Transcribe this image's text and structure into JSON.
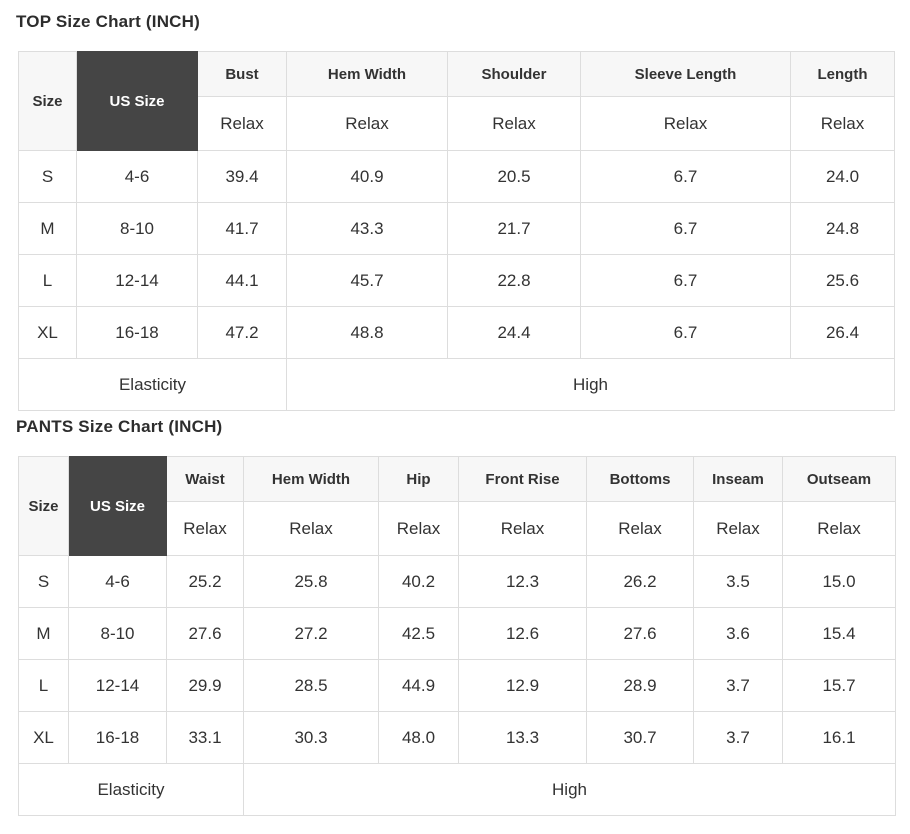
{
  "colors": {
    "accent_dark": "#454545",
    "header_bg": "#f7f7f7",
    "border": "#dddddd",
    "text": "#333333"
  },
  "charts": [
    {
      "id": "top",
      "title": "TOP Size Chart (INCH)",
      "columns": [
        "Size",
        "US Size",
        "Bust",
        "Hem Width",
        "Shoulder",
        "Sleeve Length",
        "Length"
      ],
      "fit_label": "Relax",
      "rows": [
        [
          "S",
          "4-6",
          "39.4",
          "40.9",
          "20.5",
          "6.7",
          "24.0"
        ],
        [
          "M",
          "8-10",
          "41.7",
          "43.3",
          "21.7",
          "6.7",
          "24.8"
        ],
        [
          "L",
          "12-14",
          "44.1",
          "45.7",
          "22.8",
          "6.7",
          "25.6"
        ],
        [
          "XL",
          "16-18",
          "47.2",
          "48.8",
          "24.4",
          "6.7",
          "26.4"
        ]
      ],
      "elasticity_label": "Elasticity",
      "elasticity_value": "High"
    },
    {
      "id": "pants",
      "title": "PANTS Size Chart (INCH)",
      "columns": [
        "Size",
        "US Size",
        "Waist",
        "Hem Width",
        "Hip",
        "Front Rise",
        "Bottoms",
        "Inseam",
        "Outseam"
      ],
      "fit_label": "Relax",
      "rows": [
        [
          "S",
          "4-6",
          "25.2",
          "25.8",
          "40.2",
          "12.3",
          "26.2",
          "3.5",
          "15.0"
        ],
        [
          "M",
          "8-10",
          "27.6",
          "27.2",
          "42.5",
          "12.6",
          "27.6",
          "3.6",
          "15.4"
        ],
        [
          "L",
          "12-14",
          "29.9",
          "28.5",
          "44.9",
          "12.9",
          "28.9",
          "3.7",
          "15.7"
        ],
        [
          "XL",
          "16-18",
          "33.1",
          "30.3",
          "48.0",
          "13.3",
          "30.7",
          "3.7",
          "16.1"
        ]
      ],
      "elasticity_label": "Elasticity",
      "elasticity_value": "High"
    }
  ]
}
